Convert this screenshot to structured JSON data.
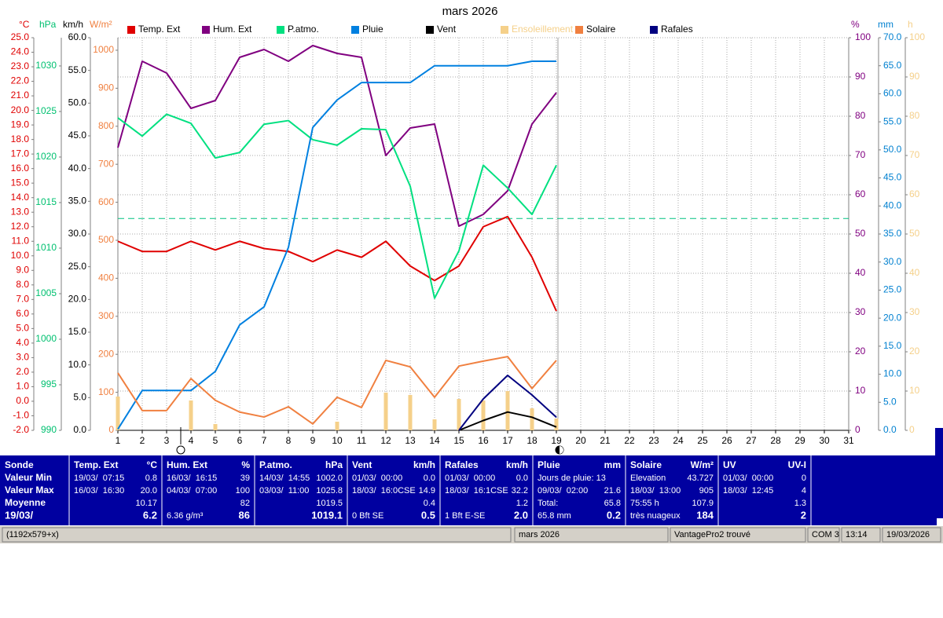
{
  "chart_data": {
    "type": "line",
    "title": "mars 2026",
    "xlim": [
      1,
      31
    ],
    "xticks": [
      1,
      2,
      3,
      4,
      5,
      6,
      7,
      8,
      9,
      10,
      11,
      12,
      13,
      14,
      15,
      16,
      17,
      18,
      19,
      20,
      21,
      22,
      23,
      24,
      25,
      26,
      27,
      28,
      29,
      30,
      31
    ],
    "x": [
      1,
      2,
      3,
      4,
      5,
      6,
      7,
      8,
      9,
      10,
      11,
      12,
      13,
      14,
      15,
      16,
      17,
      18,
      19
    ],
    "axes": [
      {
        "unit": "°C",
        "color": "#e00000",
        "lim": [
          -2,
          25
        ],
        "ticks": [
          {
            "value": -2,
            "label": "-2.0"
          },
          {
            "value": -1,
            "label": "-1.0"
          },
          {
            "value": 0,
            "label": "0.0"
          },
          {
            "value": 1,
            "label": "1.0"
          },
          {
            "value": 2,
            "label": "2.0"
          },
          {
            "value": 3,
            "label": "3.0"
          },
          {
            "value": 4,
            "label": "4.0"
          },
          {
            "value": 5,
            "label": "5.0"
          },
          {
            "value": 6,
            "label": "6.0"
          },
          {
            "value": 7,
            "label": "7.0"
          },
          {
            "value": 8,
            "label": "8.0"
          },
          {
            "value": 9,
            "label": "9.0"
          },
          {
            "value": 10,
            "label": "10.0"
          },
          {
            "value": 11,
            "label": "11.0"
          },
          {
            "value": 12,
            "label": "12.0"
          },
          {
            "value": 13,
            "label": "13.0"
          },
          {
            "value": 14,
            "label": "14.0"
          },
          {
            "value": 15,
            "label": "15.0"
          },
          {
            "value": 16,
            "label": "16.0"
          },
          {
            "value": 17,
            "label": "17.0"
          },
          {
            "value": 18,
            "label": "18.0"
          },
          {
            "value": 19,
            "label": "19.0"
          },
          {
            "value": 20,
            "label": "20.0"
          },
          {
            "value": 21,
            "label": "21.0"
          },
          {
            "value": 22,
            "label": "22.0"
          },
          {
            "value": 23,
            "label": "23.0"
          },
          {
            "value": 24,
            "label": "24.0"
          },
          {
            "value": 25,
            "label": "25.0"
          }
        ]
      },
      {
        "unit": "hPa",
        "color": "#00c070",
        "lim": [
          990,
          1033.1
        ],
        "ticks": [
          990,
          995,
          1000,
          1005,
          1010,
          1015,
          1020,
          1025,
          1030
        ]
      },
      {
        "unit": "km/h",
        "color": "#000000",
        "lim": [
          0,
          60
        ],
        "ticks": [
          {
            "value": 0,
            "label": "0.0"
          },
          {
            "value": 5,
            "label": "5.0"
          },
          {
            "value": 10,
            "label": "10.0"
          },
          {
            "value": 15,
            "label": "15.0"
          },
          {
            "value": 20,
            "label": "20.0"
          },
          {
            "value": 25,
            "label": "25.0"
          },
          {
            "value": 30,
            "label": "30.0"
          },
          {
            "value": 35,
            "label": "35.0"
          },
          {
            "value": 40,
            "label": "40.0"
          },
          {
            "value": 45,
            "label": "45.0"
          },
          {
            "value": 50,
            "label": "50.0"
          },
          {
            "value": 55,
            "label": "55.0"
          },
          {
            "value": 60,
            "label": "60.0"
          }
        ]
      },
      {
        "unit": "W/m²",
        "color": "#f08040",
        "lim": [
          0,
          1033
        ],
        "ticks": [
          0,
          100,
          200,
          300,
          400,
          500,
          600,
          700,
          800,
          900,
          1000
        ]
      },
      {
        "unit": "%",
        "color": "#800080",
        "lim": [
          0,
          100
        ],
        "ticks": [
          0,
          10,
          20,
          30,
          40,
          50,
          60,
          70,
          80,
          90,
          100
        ],
        "grid": true
      },
      {
        "unit": "mm",
        "color": "#0080d0",
        "lim": [
          0,
          70
        ],
        "ticks": [
          {
            "value": 0,
            "label": "0.0"
          },
          {
            "value": 5,
            "label": "5.0"
          },
          {
            "value": 10,
            "label": "10.0"
          },
          {
            "value": 15,
            "label": "15.0"
          },
          {
            "value": 20,
            "label": "20.0"
          },
          {
            "value": 25,
            "label": "25.0"
          },
          {
            "value": 30,
            "label": "30.0"
          },
          {
            "value": 35,
            "label": "35.0"
          },
          {
            "value": 40,
            "label": "40.0"
          },
          {
            "value": 45,
            "label": "45.0"
          },
          {
            "value": 50,
            "label": "50.0"
          },
          {
            "value": 55,
            "label": "55.0"
          },
          {
            "value": 60,
            "label": "60.0"
          },
          {
            "value": 65,
            "label": "65.0"
          },
          {
            "value": 70,
            "label": "70.0"
          }
        ]
      },
      {
        "unit": "h",
        "color": "#f5d08a",
        "lim": [
          0,
          100
        ],
        "ticks": [
          0,
          10,
          20,
          30,
          40,
          50,
          60,
          70,
          80,
          90,
          100
        ]
      }
    ],
    "reference_lines": [
      {
        "axis": 1,
        "value": 1013.25,
        "color": "#00c080"
      }
    ],
    "series": [
      {
        "name": "Temp. Ext",
        "color": "#e00000",
        "axis": 0,
        "values": [
          11.0,
          10.3,
          10.3,
          11.0,
          10.4,
          11.0,
          10.5,
          10.3,
          9.6,
          10.4,
          9.9,
          11.0,
          9.3,
          8.3,
          9.3,
          12.0,
          12.7,
          9.9,
          6.2
        ]
      },
      {
        "name": "Hum. Ext",
        "color": "#800080",
        "axis": 4,
        "values": [
          72,
          94,
          91,
          82,
          84,
          95,
          97,
          94,
          98,
          96,
          95,
          70,
          77,
          78,
          52,
          55,
          61,
          78,
          86
        ]
      },
      {
        "name": "P.atmo.",
        "color": "#00e080",
        "axis": 1,
        "values": [
          1024.3,
          1022.3,
          1024.7,
          1023.7,
          1019.9,
          1020.5,
          1023.6,
          1024.0,
          1021.9,
          1021.3,
          1023.1,
          1023.0,
          1016.8,
          1004.5,
          1009.7,
          1019.1,
          1016.6,
          1013.7,
          1019.1
        ]
      },
      {
        "name": "Pluie",
        "color": "#0080e0",
        "axis": 5,
        "values": [
          0.2,
          7.1,
          7.1,
          7.1,
          10.5,
          18.8,
          22.0,
          32.6,
          54.0,
          58.9,
          62.0,
          62.0,
          62.0,
          65.0,
          65.0,
          65.0,
          65.0,
          65.8,
          65.8
        ]
      },
      {
        "name": "Vent",
        "color": "#000000",
        "axis": 2,
        "values": [
          null,
          null,
          null,
          null,
          null,
          null,
          null,
          null,
          null,
          null,
          null,
          null,
          null,
          null,
          0,
          1.5,
          2.8,
          2.0,
          0.5
        ]
      },
      {
        "name": "Ensoleillement",
        "color": "#f5d08a",
        "axis": 6,
        "type": "bar",
        "values": [
          8.6,
          0,
          0,
          7.6,
          1.6,
          0,
          0,
          0,
          0,
          2.2,
          0,
          9.6,
          9.0,
          2.8,
          8.0,
          7.6,
          10.0,
          5.6,
          3.0
        ]
      },
      {
        "name": "Solaire",
        "color": "#f08040",
        "axis": 3,
        "values": [
          151,
          52,
          52,
          136,
          79,
          48,
          35,
          62,
          17,
          87,
          60,
          184,
          167,
          87,
          169,
          182,
          194,
          110,
          184
        ]
      },
      {
        "name": "Rafales",
        "color": "#000080",
        "axis": 2,
        "values": [
          null,
          null,
          null,
          null,
          null,
          null,
          null,
          null,
          null,
          null,
          null,
          null,
          null,
          null,
          0,
          4.8,
          8.4,
          5.4,
          2.0
        ]
      }
    ]
  },
  "stats": {
    "header": "Sonde",
    "row_labels": [
      "Valeur Min",
      "Valeur Max",
      "Moyenne",
      "19/03/"
    ],
    "columns": [
      {
        "title": "Temp. Ext",
        "unit": "°C",
        "rows": [
          [
            "19/03/  07:15",
            "0.8"
          ],
          [
            "16/03/  16:30",
            "20.0"
          ],
          [
            null,
            "10.17"
          ],
          [
            null,
            "6.2"
          ]
        ]
      },
      {
        "title": "Hum. Ext",
        "unit": "%",
        "rows": [
          [
            "16/03/  16:15",
            "39"
          ],
          [
            "04/03/  07:00",
            "100"
          ],
          [
            null,
            "82"
          ],
          [
            "6.36 g/m³",
            "86"
          ]
        ]
      },
      {
        "title": "P.atmo.",
        "unit": "hPa",
        "rows": [
          [
            "14/03/  14:55",
            "1002.0"
          ],
          [
            "03/03/  11:00",
            "1025.8"
          ],
          [
            null,
            "1019.5"
          ],
          [
            null,
            "1019.1"
          ]
        ]
      },
      {
        "title": "Vent",
        "unit": "km/h",
        "rows": [
          [
            "01/03/  00:00",
            "0.0"
          ],
          [
            "18/03/  16:0CSE",
            "14.9"
          ],
          [
            null,
            "0.4"
          ],
          [
            "0 Bft SE",
            "0.5"
          ]
        ]
      },
      {
        "title": "Rafales",
        "unit": "km/h",
        "rows": [
          [
            "01/03/  00:00",
            "0.0"
          ],
          [
            "18/03/  16:1CSE",
            "32.2"
          ],
          [
            null,
            "1.2"
          ],
          [
            "1 Bft E-SE",
            "2.0"
          ]
        ]
      },
      {
        "title": "Pluie",
        "unit": "mm",
        "rows": [
          [
            "Jours de pluie: 13",
            null
          ],
          [
            "09/03/  02:00",
            "21.6"
          ],
          [
            "Total:",
            "65.8"
          ],
          [
            "65.8 mm",
            "0.2"
          ]
        ]
      },
      {
        "title": "Solaire",
        "unit": "W/m²",
        "rows": [
          [
            "Elevation",
            "43.727"
          ],
          [
            "18/03/  13:00",
            "905"
          ],
          [
            "75:55 h",
            "107.9"
          ],
          [
            "très nuageux",
            "184"
          ]
        ]
      },
      {
        "title": "UV",
        "unit": "UV-I",
        "rows": [
          [
            "01/03/  00:00",
            "0"
          ],
          [
            "18/03/  12:45",
            "4"
          ],
          [
            null,
            "1.3"
          ],
          [
            null,
            "2"
          ]
        ]
      }
    ]
  },
  "status_bar": [
    "(1192x579+x)",
    "mars 2026",
    "VantagePro2 trouvé",
    "COM 3",
    "13:14",
    "19/03/2026"
  ]
}
